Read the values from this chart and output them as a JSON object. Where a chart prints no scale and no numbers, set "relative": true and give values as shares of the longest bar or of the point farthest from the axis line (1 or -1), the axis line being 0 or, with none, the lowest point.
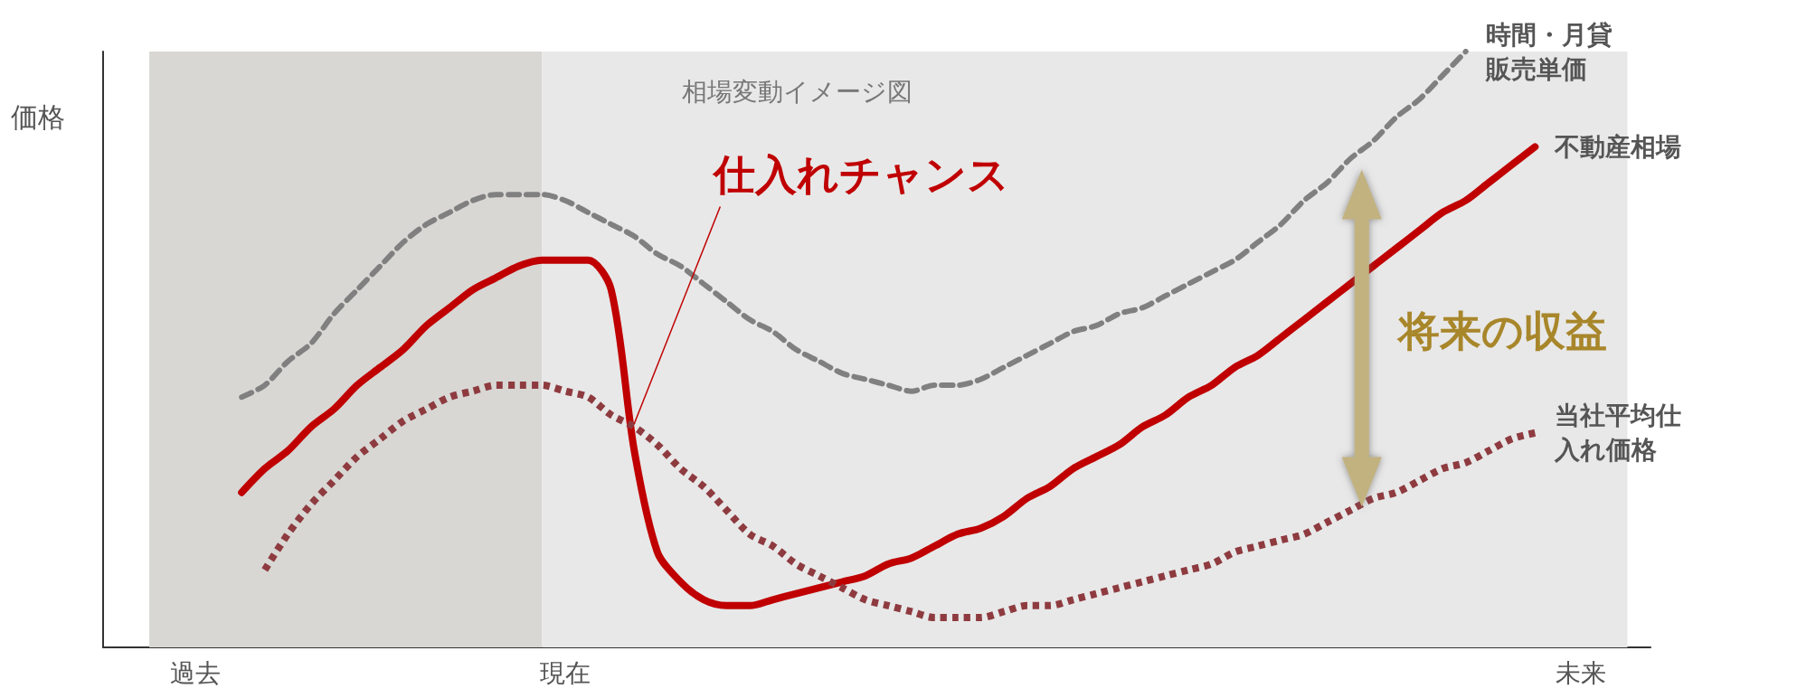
{
  "chart_data": {
    "type": "line",
    "relative": true,
    "ylabel": "価格",
    "marker": "none",
    "categories": [
      null,
      null,
      null,
      null,
      "過去",
      null,
      null,
      null,
      null,
      null,
      null,
      null,
      null,
      null,
      null,
      null,
      null,
      null,
      null,
      null,
      "現在",
      null,
      null,
      null,
      null,
      null,
      null,
      null,
      null,
      null,
      null,
      null,
      null,
      null,
      null,
      null,
      null,
      null,
      null,
      null,
      null,
      null,
      null,
      null,
      null,
      null,
      null,
      null,
      null,
      null,
      null,
      null,
      null,
      null,
      null,
      null,
      null,
      null,
      null,
      null,
      null,
      null,
      null,
      null,
      "未来",
      null,
      null,
      null
    ],
    "series": [
      {
        "name": "時間・月貸販売単価",
        "color": "#808080",
        "line_style": "dashed",
        "values": [
          null,
          null,
          null,
          null,
          null,
          null,
          0.42,
          0.44,
          0.48,
          0.51,
          0.56,
          0.6,
          0.64,
          0.68,
          0.71,
          0.73,
          0.75,
          0.76,
          0.76,
          0.76,
          0.75,
          0.73,
          0.71,
          0.69,
          0.66,
          0.64,
          0.61,
          0.58,
          0.55,
          0.53,
          0.5,
          0.48,
          0.46,
          0.45,
          0.44,
          0.43,
          0.44,
          0.44,
          0.45,
          0.47,
          0.49,
          0.51,
          0.53,
          0.54,
          0.56,
          0.57,
          0.59,
          0.61,
          0.63,
          0.65,
          0.68,
          0.71,
          0.75,
          0.78,
          0.82,
          0.85,
          0.89,
          0.92,
          0.96,
          1,
          null,
          null,
          null,
          null,
          null,
          null,
          null,
          null
        ]
      },
      {
        "name": "不動産相場",
        "color": "#c00000",
        "line_style": "solid",
        "values": [
          null,
          null,
          null,
          null,
          null,
          null,
          0.26,
          0.3,
          0.33,
          0.37,
          0.4,
          0.44,
          0.47,
          0.5,
          0.54,
          0.57,
          0.6,
          0.62,
          0.64,
          0.65,
          0.65,
          0.65,
          0.6,
          0.33,
          0.16,
          0.11,
          0.08,
          0.07,
          0.07,
          0.08,
          0.09,
          0.1,
          0.11,
          0.12,
          0.14,
          0.15,
          0.17,
          0.19,
          0.2,
          0.22,
          0.25,
          0.27,
          0.3,
          0.32,
          0.34,
          0.37,
          0.39,
          0.42,
          0.44,
          0.47,
          0.49,
          0.52,
          0.55,
          0.58,
          0.61,
          0.64,
          0.67,
          0.7,
          0.73,
          0.75,
          0.78,
          0.81,
          0.84,
          null,
          null,
          null,
          null,
          null
        ]
      },
      {
        "name": "当社平均仕入れ価格",
        "color": "#8e3b40",
        "line_style": "dotted",
        "values": [
          null,
          null,
          null,
          null,
          null,
          null,
          null,
          0.13,
          0.19,
          0.24,
          0.28,
          0.32,
          0.35,
          0.38,
          0.4,
          0.42,
          0.43,
          0.44,
          0.44,
          0.44,
          0.43,
          0.42,
          0.39,
          0.37,
          0.34,
          0.3,
          0.27,
          0.23,
          0.19,
          0.17,
          0.14,
          0.12,
          0.1,
          0.08,
          0.07,
          0.06,
          0.05,
          0.05,
          0.05,
          0.06,
          0.07,
          0.07,
          0.08,
          0.09,
          0.1,
          0.11,
          0.12,
          0.13,
          0.14,
          0.16,
          0.17,
          0.18,
          0.19,
          0.21,
          0.23,
          0.25,
          0.26,
          0.28,
          0.3,
          0.31,
          0.33,
          0.35,
          0.36,
          null,
          null,
          null,
          null,
          null
        ]
      }
    ],
    "annotations": [
      "相場変動イメージ図",
      "仕入れチャンス",
      "将来の収益"
    ]
  }
}
